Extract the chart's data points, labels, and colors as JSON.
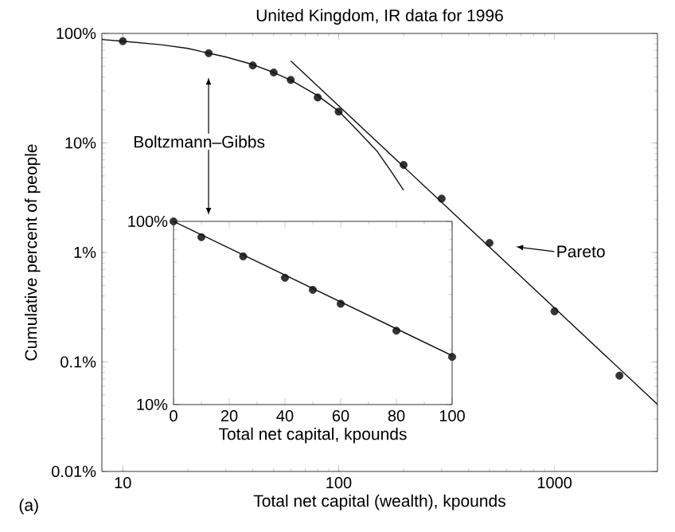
{
  "chart_data": [
    {
      "type": "scatter",
      "title": "United Kingdom, IR data for 1996",
      "xlabel": "Total net capital (wealth), kpounds",
      "ylabel": "Cumulative percent of people",
      "log": "xy",
      "xlim": [
        8,
        3000
      ],
      "ylim": [
        0.01,
        100
      ],
      "xticks": [
        10,
        100,
        1000
      ],
      "yticks": [
        {
          "value": 0.01,
          "label": "0.01%"
        },
        {
          "value": 0.1,
          "label": "0.1%"
        },
        {
          "value": 1,
          "label": "1%"
        },
        {
          "value": 10,
          "label": "10%"
        },
        {
          "value": 100,
          "label": "100%"
        }
      ],
      "annotations": [
        "Boltzmann–Gibbs",
        "Pareto",
        "(a)"
      ],
      "series": [
        {
          "marker": "circle",
          "color": "#333333",
          "x": [
            10,
            25,
            40,
            50,
            60,
            80,
            100,
            200,
            300,
            500,
            1000,
            2000
          ],
          "values": [
            85,
            66,
            51,
            44,
            37.6,
            26,
            19.3,
            6.3,
            3.1,
            1.22,
            0.29,
            0.075
          ]
        },
        {
          "type": "line",
          "marker": "none",
          "color": "#111111",
          "x": [
            8,
            10,
            15,
            20,
            25,
            30,
            40,
            50,
            60,
            80,
            100,
            120,
            150,
            175,
            200
          ],
          "values": [
            88,
            85,
            79,
            73,
            66,
            61,
            52,
            44,
            37.5,
            27,
            19.5,
            13.5,
            8.5,
            5.5,
            3.7
          ]
        },
        {
          "type": "line",
          "marker": "none",
          "color": "#111111",
          "x": [
            60,
            3000
          ],
          "values": [
            56,
            0.041
          ]
        }
      ]
    },
    {
      "type": "scatter",
      "xlabel": "Total net capital, kpounds",
      "log": "y",
      "xlim": [
        0,
        100
      ],
      "ylim": [
        10,
        100
      ],
      "xticks": [
        0,
        20,
        40,
        60,
        80,
        100
      ],
      "yticks": [
        {
          "value": 10,
          "label": "10%"
        },
        {
          "value": 100,
          "label": "100%"
        }
      ],
      "series": [
        {
          "marker": "circle",
          "color": "#333333",
          "x": [
            0,
            10,
            25,
            40,
            50,
            60,
            80,
            100
          ],
          "values": [
            100,
            82,
            64.4,
            49.2,
            42.3,
            35.5,
            25.3,
            18.2
          ]
        },
        {
          "type": "line",
          "marker": "none",
          "color": "#111111",
          "x": [
            0,
            100
          ],
          "values": [
            100,
            18.5
          ]
        }
      ]
    }
  ]
}
